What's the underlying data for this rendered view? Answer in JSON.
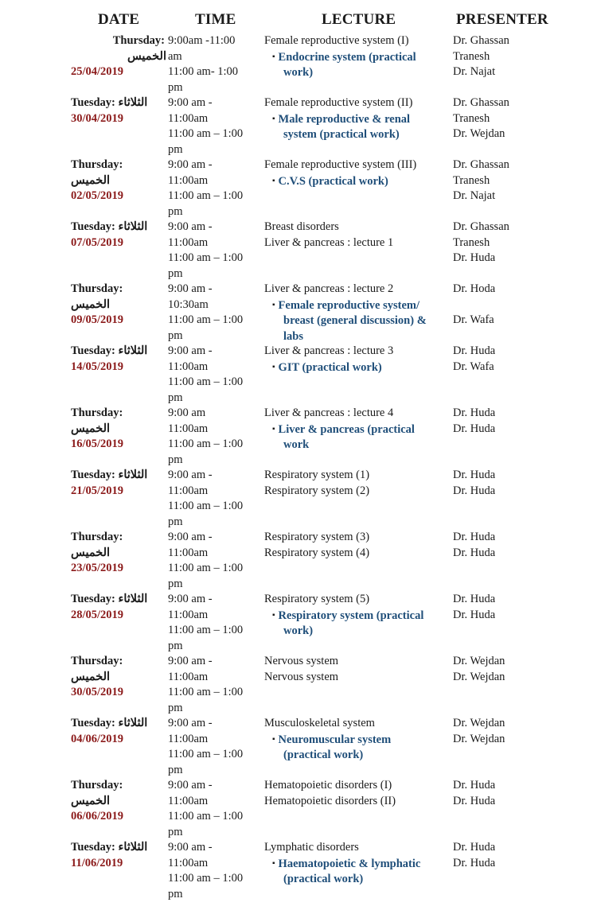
{
  "headers": {
    "date": "DATE",
    "time": "TIME",
    "lecture": "LECTURE",
    "presenter": "PRESENTER"
  },
  "colors": {
    "date": "#8b1a1a",
    "practical": "#1f4e79",
    "text": "#1a1a1a"
  },
  "rows": [
    {
      "day": "Thursday:",
      "arabic": "الخميس",
      "date": "25/04/2019",
      "style": "first",
      "time": [
        "9:00am -11:00",
        "am",
        "11:00 am- 1:00",
        "pm"
      ],
      "lecture": [
        {
          "text": "Female reproductive system (I)",
          "practical": false
        },
        {
          "text": "Endocrine system (practical work)",
          "practical": true
        }
      ],
      "presenters": [
        "Dr. Ghassan",
        "Tranesh",
        "Dr. Najat"
      ]
    },
    {
      "day": "Tuesday:",
      "arabic": "الثلاثاء",
      "date": "30/04/2019",
      "style": "tue",
      "time": [
        "9:00 am -",
        "11:00am",
        "11:00 am – 1:00",
        "pm"
      ],
      "lecture": [
        {
          "text": "Female reproductive system (II)",
          "practical": false
        },
        {
          "text": "Male reproductive & renal system (practical work)",
          "practical": true
        }
      ],
      "presenters": [
        "Dr. Ghassan",
        "Tranesh",
        "Dr. Wejdan"
      ]
    },
    {
      "day": "Thursday:",
      "arabic": "الخميس",
      "date": "02/05/2019",
      "style": "thu",
      "time": [
        "9:00 am -",
        "11:00am",
        "11:00 am – 1:00",
        "pm"
      ],
      "lecture": [
        {
          "text": "Female reproductive system (III)",
          "practical": false
        },
        {
          "text": "C.V.S (practical work)",
          "practical": true
        }
      ],
      "presenters": [
        "Dr. Ghassan",
        "Tranesh",
        "Dr. Najat"
      ]
    },
    {
      "day": "Tuesday:",
      "arabic": "الثلاثاء",
      "date": "07/05/2019",
      "style": "tue",
      "time": [
        "9:00 am -",
        "11:00am",
        "11:00 am – 1:00",
        "pm"
      ],
      "lecture": [
        {
          "text": "Breast disorders",
          "practical": false
        },
        {
          "text": "Liver & pancreas : lecture 1",
          "practical": false
        }
      ],
      "presenters": [
        "Dr. Ghassan",
        "Tranesh",
        "Dr. Huda"
      ]
    },
    {
      "day": "Thursday:",
      "arabic": "الخميس",
      "date": "09/05/2019",
      "style": "thu",
      "time": [
        "9:00 am -",
        "10:30am",
        "11:00 am – 1:00",
        "pm"
      ],
      "lecture": [
        {
          "text": "Liver & pancreas : lecture 2",
          "practical": false
        },
        {
          "text": "Female reproductive system/ breast (general discussion) & labs",
          "practical": true
        }
      ],
      "presenters": [
        "Dr. Hoda",
        "",
        "Dr. Wafa"
      ]
    },
    {
      "day": "Tuesday:",
      "arabic": "الثلاثاء",
      "date": "14/05/2019",
      "style": "tue",
      "time": [
        "9:00 am -",
        "11:00am",
        "11:00 am – 1:00",
        "pm"
      ],
      "lecture": [
        {
          "text": "Liver & pancreas : lecture 3",
          "practical": false
        },
        {
          "text": "GIT (practical work)",
          "practical": true
        }
      ],
      "presenters": [
        "Dr. Huda",
        "Dr. Wafa"
      ]
    },
    {
      "day": "Thursday:",
      "arabic": "الخميس",
      "date": "16/05/2019",
      "style": "thu",
      "time": [
        "9:00 am",
        "11:00am",
        "11:00 am – 1:00",
        "pm"
      ],
      "lecture": [
        {
          "text": "Liver & pancreas : lecture 4",
          "practical": false
        },
        {
          "text": "Liver & pancreas (practical work",
          "practical": true
        }
      ],
      "presenters": [
        "Dr. Huda",
        "Dr. Huda"
      ]
    },
    {
      "day": "Tuesday:",
      "arabic": "الثلاثاء",
      "date": "21/05/2019",
      "style": "tue",
      "time": [
        "9:00 am -",
        "11:00am",
        "11:00 am – 1:00",
        "pm"
      ],
      "lecture": [
        {
          "text": "Respiratory system (1)",
          "practical": false
        },
        {
          "text": "Respiratory system (2)",
          "practical": false
        }
      ],
      "presenters": [
        "Dr. Huda",
        "Dr. Huda"
      ]
    },
    {
      "day": "Thursday:",
      "arabic": "الخميس",
      "date": "23/05/2019",
      "style": "thu",
      "time": [
        "9:00 am -",
        "11:00am",
        "11:00 am – 1:00",
        "pm"
      ],
      "lecture": [
        {
          "text": "Respiratory system (3)",
          "practical": false
        },
        {
          "text": "Respiratory system (4)",
          "practical": false
        }
      ],
      "presenters": [
        "Dr. Huda",
        "Dr. Huda"
      ]
    },
    {
      "day": "Tuesday:",
      "arabic": "الثلاثاء",
      "date": "28/05/2019",
      "style": "tue",
      "time": [
        "9:00 am -",
        "11:00am",
        "11:00 am – 1:00",
        "pm"
      ],
      "lecture": [
        {
          "text": "Respiratory system (5)",
          "practical": false
        },
        {
          "text": "Respiratory system (practical work)",
          "practical": true
        }
      ],
      "presenters": [
        "Dr. Huda",
        "Dr. Huda"
      ]
    },
    {
      "day": "Thursday:",
      "arabic": "الخميس",
      "date": "30/05/2019",
      "style": "thu",
      "time": [
        "9:00 am -",
        "11:00am",
        "11:00 am – 1:00",
        "pm"
      ],
      "lecture": [
        {
          "text": "Nervous system",
          "practical": false
        },
        {
          "text": "Nervous system",
          "practical": false
        }
      ],
      "presenters": [
        "Dr. Wejdan",
        "Dr. Wejdan"
      ]
    },
    {
      "day": "Tuesday:",
      "arabic": "الثلاثاء",
      "date": "04/06/2019",
      "style": "tue",
      "time": [
        "9:00 am -",
        "11:00am",
        "11:00 am – 1:00",
        "pm"
      ],
      "lecture": [
        {
          "text": "Musculoskeletal system",
          "practical": false
        },
        {
          "text": "Neuromuscular system (practical work)",
          "practical": true
        }
      ],
      "presenters": [
        "Dr. Wejdan",
        "Dr. Wejdan"
      ]
    },
    {
      "day": "Thursday:",
      "arabic": "الخميس",
      "date": "06/06/2019",
      "style": "thu",
      "time": [
        "9:00 am -",
        "11:00am",
        "11:00 am – 1:00",
        "pm"
      ],
      "lecture": [
        {
          "text": "Hematopoietic disorders (I)",
          "practical": false
        },
        {
          "text": "Hematopoietic disorders (II)",
          "practical": false
        }
      ],
      "presenters": [
        "Dr. Huda",
        "Dr. Huda"
      ]
    },
    {
      "day": "Tuesday:",
      "arabic": "الثلاثاء",
      "date": "11/06/2019",
      "style": "tue",
      "time": [
        "9:00 am -",
        "11:00am",
        "11:00 am – 1:00",
        "pm"
      ],
      "lecture": [
        {
          "text": "Lymphatic disorders",
          "practical": false
        },
        {
          "text": "Haematopoietic & lymphatic (practical work)",
          "practical": true
        }
      ],
      "presenters": [
        "Dr. Huda",
        "Dr. Huda"
      ]
    }
  ]
}
